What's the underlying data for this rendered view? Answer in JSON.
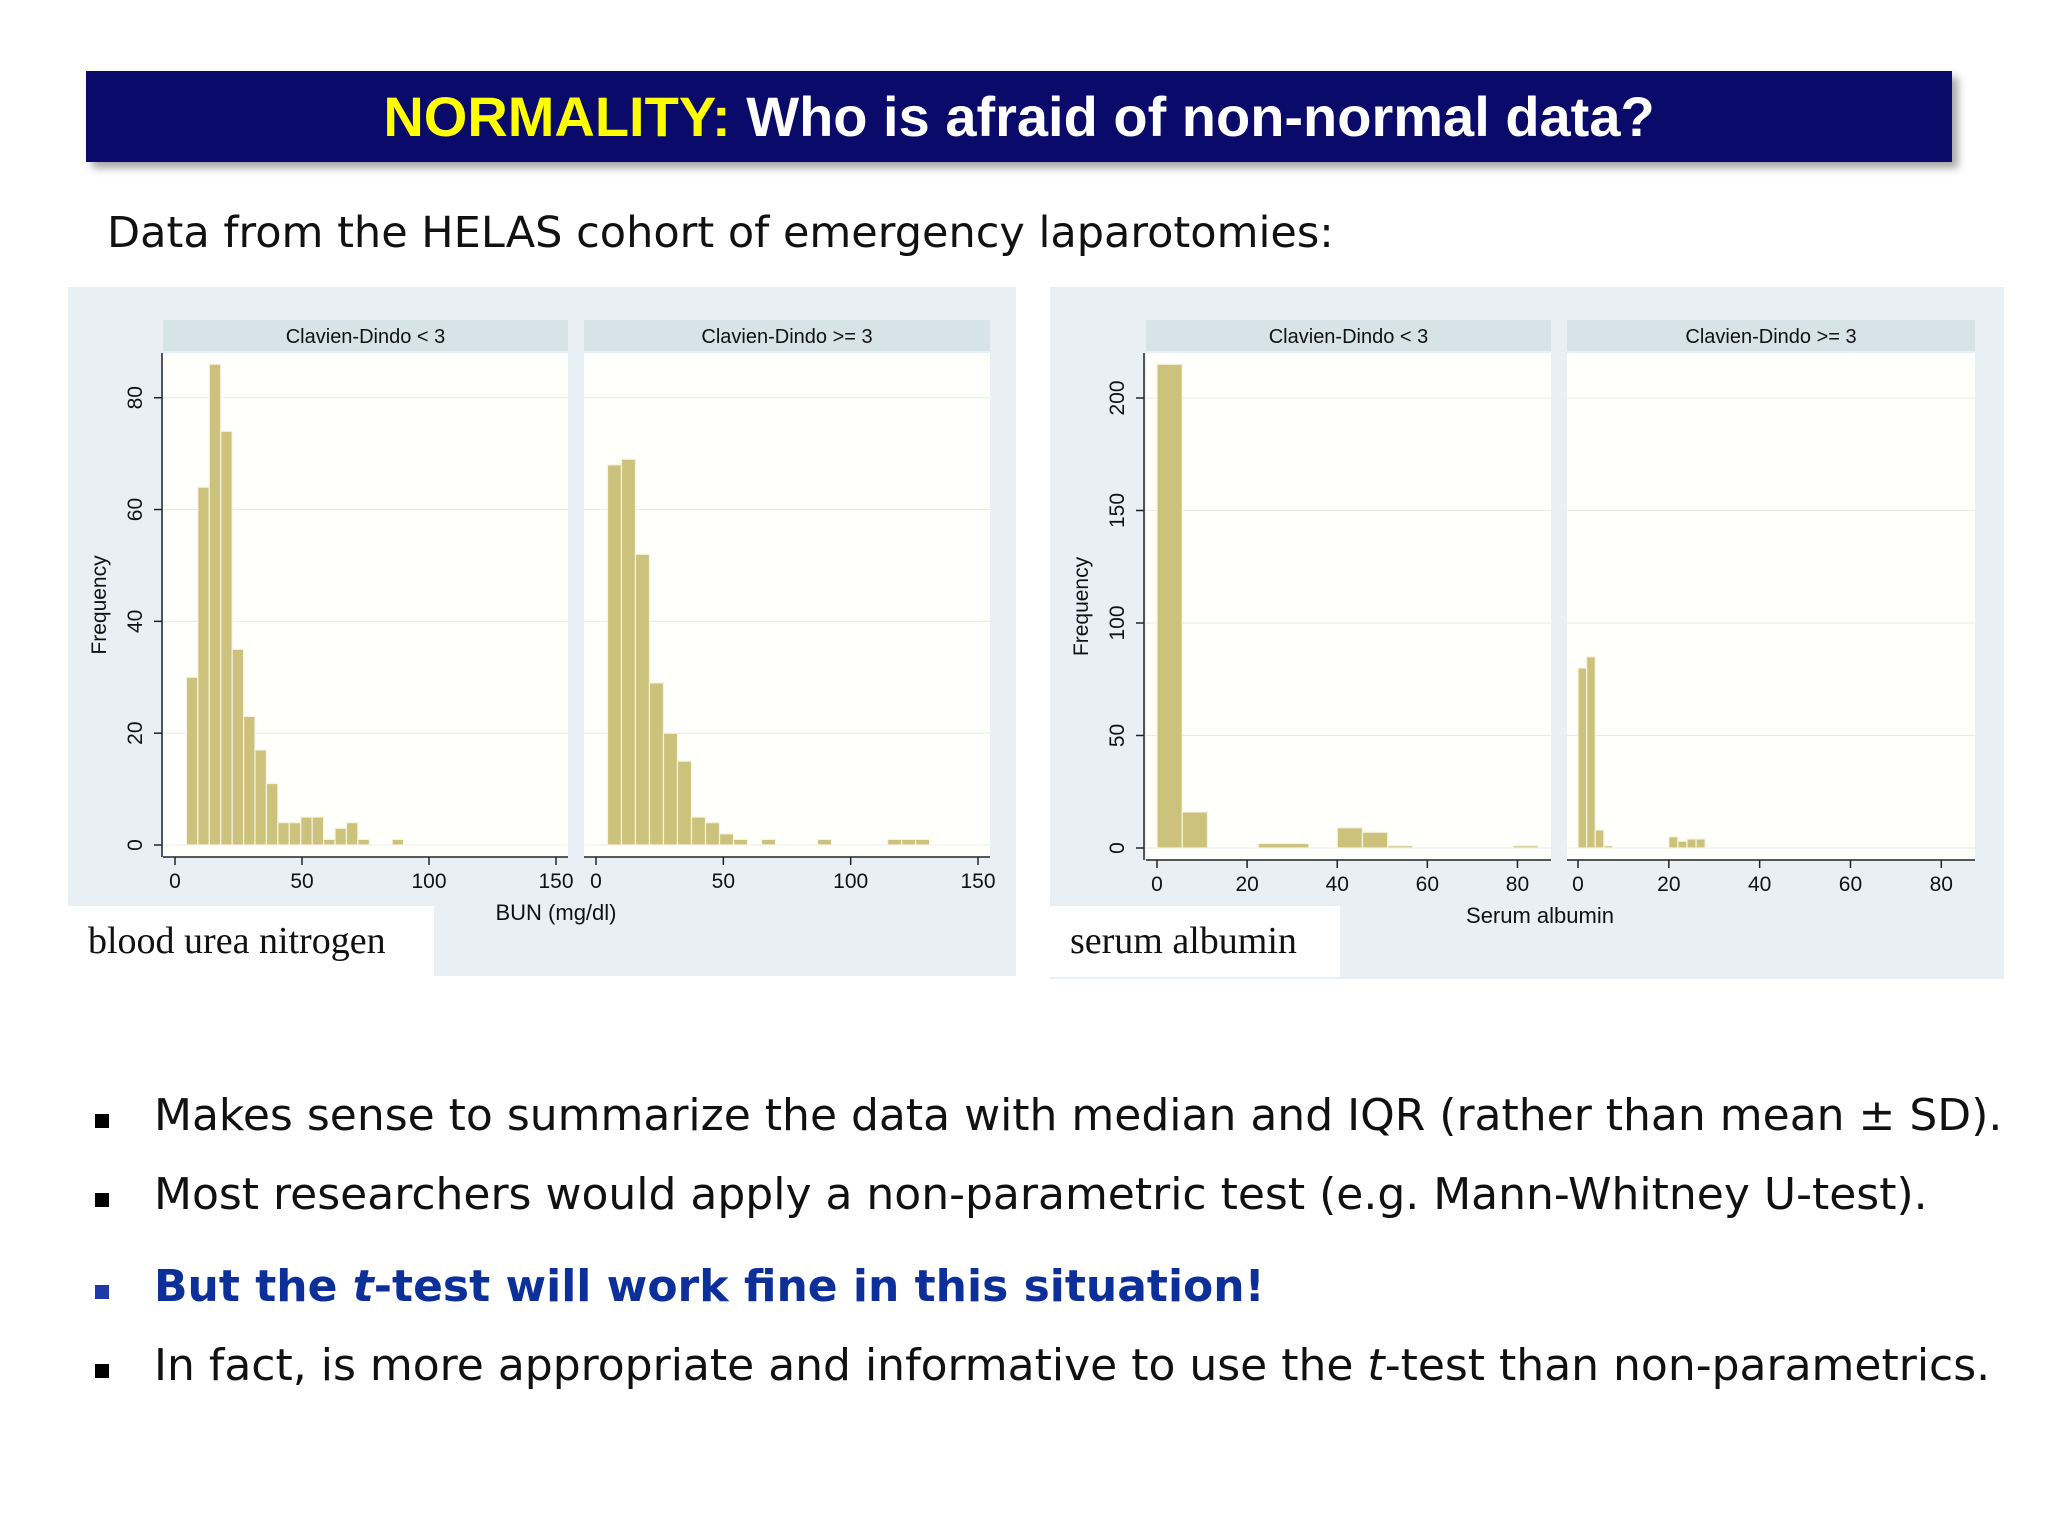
{
  "title": {
    "accent": "NORMALITY:",
    "main": " Who is afraid of non-normal data?"
  },
  "subtitle": "Data from the HELAS cohort of emergency laparotomies:",
  "colors": {
    "title_bg": "#0a0a6b",
    "title_accent": "#ffff00",
    "bar": "#ccc27c",
    "bar_edge": "#f7f4e3",
    "panel_bg": "#e8f0f5",
    "strip_bg": "#d6e3e9",
    "emphasis": "#0c2f9a"
  },
  "chart_data": [
    {
      "type": "bar",
      "caption": "blood urea nitrogen",
      "xlabel": "BUN (mg/dl)",
      "ylabel": "Frequency",
      "xlim": [
        0,
        150
      ],
      "ylim": [
        0,
        88
      ],
      "xticks": [
        0,
        50,
        100,
        150
      ],
      "yticks": [
        0,
        20,
        40,
        60,
        80
      ],
      "bin_width": 4.5,
      "panels": [
        {
          "name": "Clavien-Dindo < 3",
          "bins_start": 4.5,
          "values": [
            30,
            64,
            86,
            74,
            35,
            23,
            17,
            11,
            4,
            4,
            5,
            5,
            1,
            3,
            4,
            1,
            0,
            0,
            1
          ]
        },
        {
          "name": "Clavien-Dindo >= 3",
          "bins_start": 4.5,
          "bin_width": 5.5,
          "values": [
            68,
            69,
            52,
            29,
            20,
            15,
            5,
            4,
            2,
            1,
            0,
            1,
            0,
            0,
            0,
            1,
            0,
            0,
            0,
            0,
            1,
            1,
            1
          ]
        }
      ]
    },
    {
      "type": "bar",
      "caption": "serum albumin",
      "xlabel": "Serum albumin",
      "ylabel": "Frequency",
      "xlim": [
        0,
        85
      ],
      "ylim": [
        0,
        220
      ],
      "xticks": [
        0,
        20,
        40,
        60,
        80
      ],
      "yticks": [
        0,
        50,
        100,
        150,
        200
      ],
      "bin_width": 5.6,
      "panels": [
        {
          "name": "Clavien-Dindo < 3",
          "bins_start": 0,
          "bin_width": 5.6,
          "values": [
            215,
            16,
            0,
            0,
            0,
            0,
            0,
            0,
            0,
            0,
            0,
            0,
            0,
            0,
            0,
            0,
            0
          ],
          "extra": [
            {
              "x": 22.5,
              "w": 11.2,
              "v": 2
            },
            {
              "x": 40.0,
              "w": 5.6,
              "v": 9
            },
            {
              "x": 45.6,
              "w": 5.6,
              "v": 7
            },
            {
              "x": 51.2,
              "w": 5.6,
              "v": 1
            },
            {
              "x": 79.0,
              "w": 5.6,
              "v": 1
            }
          ]
        },
        {
          "name": "Clavien-Dindo >= 3",
          "bins_start": 0,
          "bin_width": 1.9,
          "values": [
            80,
            85,
            8,
            1
          ],
          "extra": [
            {
              "x": 20.0,
              "w": 2.0,
              "v": 5
            },
            {
              "x": 22.0,
              "w": 2.0,
              "v": 3
            },
            {
              "x": 24.0,
              "w": 2.0,
              "v": 4
            },
            {
              "x": 26.0,
              "w": 2.0,
              "v": 4
            }
          ]
        }
      ]
    }
  ],
  "bullets": [
    {
      "text": "Makes sense to summarize the data with median and IQR (rather than mean ± SD).",
      "emphasis": false
    },
    {
      "text": "Most researchers would apply a non-parametric test (e.g. Mann-Whitney U-test).",
      "emphasis": false
    },
    {
      "text": "But the t-test will work fine in this situation!",
      "emphasis": true
    },
    {
      "text": "In fact, is more appropriate and informative to use the t-test than non-parametrics.",
      "emphasis": false
    }
  ]
}
